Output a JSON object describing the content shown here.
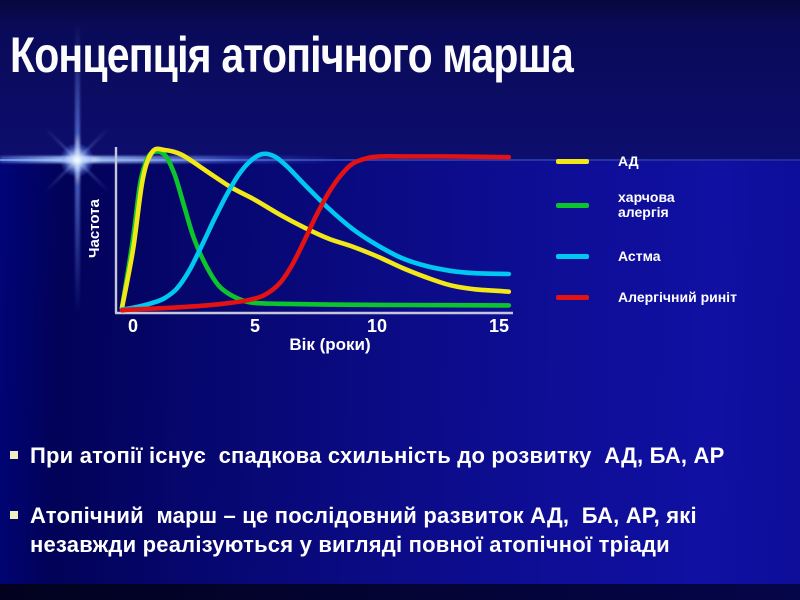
{
  "slide": {
    "title": "Концепція атопічного марша",
    "bullets": [
      "При атопії існує  спадкова схильність до розвитку  АД, БА, АР",
      "Атопічний  марш – це послідовний развиток АД,  БА, АР, які\nнезавжди реалізуються у вигляді повної атопічної тріади"
    ],
    "bullet_marker_color": "#efeec2"
  },
  "chart_data": {
    "type": "line",
    "title": "",
    "xlabel": "Вік (роки)",
    "ylabel": "Частота",
    "x_ticks": [
      0,
      5,
      10,
      15
    ],
    "xlim": [
      -0.5,
      15.5
    ],
    "ylim": [
      0,
      1
    ],
    "grid": false,
    "legend_position": "right",
    "axis_color": "#c6c6da",
    "series": [
      {
        "name": "харчова алергія",
        "legend_lines": [
          "харчова",
          "алергія"
        ],
        "legend_order": 2,
        "color": "#0cc42c",
        "points": [
          [
            -0.45,
            0.02
          ],
          [
            0,
            0.45
          ],
          [
            0.3,
            0.8
          ],
          [
            0.6,
            0.95
          ],
          [
            0.9,
            0.99
          ],
          [
            1.3,
            0.97
          ],
          [
            1.7,
            0.85
          ],
          [
            2.1,
            0.65
          ],
          [
            2.5,
            0.45
          ],
          [
            3,
            0.28
          ],
          [
            3.5,
            0.16
          ],
          [
            4,
            0.1
          ],
          [
            4.5,
            0.065
          ],
          [
            5,
            0.05
          ],
          [
            6,
            0.045
          ],
          [
            8,
            0.04
          ],
          [
            11,
            0.037
          ],
          [
            15.4,
            0.035
          ]
        ]
      },
      {
        "name": "АД",
        "legend_lines": [
          "АД"
        ],
        "legend_order": 1,
        "color": "#f2e818",
        "points": [
          [
            -0.45,
            0.02
          ],
          [
            0,
            0.38
          ],
          [
            0.4,
            0.82
          ],
          [
            0.8,
            0.99
          ],
          [
            1.3,
            1.0
          ],
          [
            2,
            0.97
          ],
          [
            3,
            0.87
          ],
          [
            4,
            0.77
          ],
          [
            5,
            0.69
          ],
          [
            6,
            0.6
          ],
          [
            7,
            0.52
          ],
          [
            8,
            0.45
          ],
          [
            9,
            0.4
          ],
          [
            10,
            0.34
          ],
          [
            11,
            0.27
          ],
          [
            12,
            0.21
          ],
          [
            13,
            0.16
          ],
          [
            14,
            0.135
          ],
          [
            15,
            0.125
          ],
          [
            15.4,
            0.12
          ]
        ]
      },
      {
        "name": "Астма",
        "legend_lines": [
          "Астма"
        ],
        "legend_order": 3,
        "color": "#00c8f0",
        "points": [
          [
            -0.45,
            0.01
          ],
          [
            0,
            0.02
          ],
          [
            0.8,
            0.05
          ],
          [
            1.3,
            0.08
          ],
          [
            1.8,
            0.14
          ],
          [
            2.3,
            0.25
          ],
          [
            2.8,
            0.4
          ],
          [
            3.3,
            0.56
          ],
          [
            3.8,
            0.71
          ],
          [
            4.3,
            0.84
          ],
          [
            4.8,
            0.93
          ],
          [
            5.3,
            0.975
          ],
          [
            5.8,
            0.96
          ],
          [
            6.3,
            0.9
          ],
          [
            7,
            0.79
          ],
          [
            8,
            0.64
          ],
          [
            9,
            0.51
          ],
          [
            10,
            0.41
          ],
          [
            11,
            0.33
          ],
          [
            12,
            0.28
          ],
          [
            13,
            0.25
          ],
          [
            14,
            0.235
          ],
          [
            15.4,
            0.23
          ]
        ]
      },
      {
        "name": "Алергічний риніт",
        "legend_lines": [
          "Алергічний риніт"
        ],
        "legend_order": 4,
        "color": "#e41212",
        "points": [
          [
            -0.45,
            0.005
          ],
          [
            0,
            0.01
          ],
          [
            1.5,
            0.02
          ],
          [
            3,
            0.035
          ],
          [
            4,
            0.05
          ],
          [
            4.8,
            0.07
          ],
          [
            5.4,
            0.1
          ],
          [
            6,
            0.17
          ],
          [
            6.5,
            0.28
          ],
          [
            7,
            0.43
          ],
          [
            7.5,
            0.59
          ],
          [
            8,
            0.73
          ],
          [
            8.5,
            0.84
          ],
          [
            9,
            0.915
          ],
          [
            9.6,
            0.95
          ],
          [
            10.2,
            0.96
          ],
          [
            11,
            0.96
          ],
          [
            13,
            0.96
          ],
          [
            15.4,
            0.955
          ]
        ]
      }
    ]
  }
}
